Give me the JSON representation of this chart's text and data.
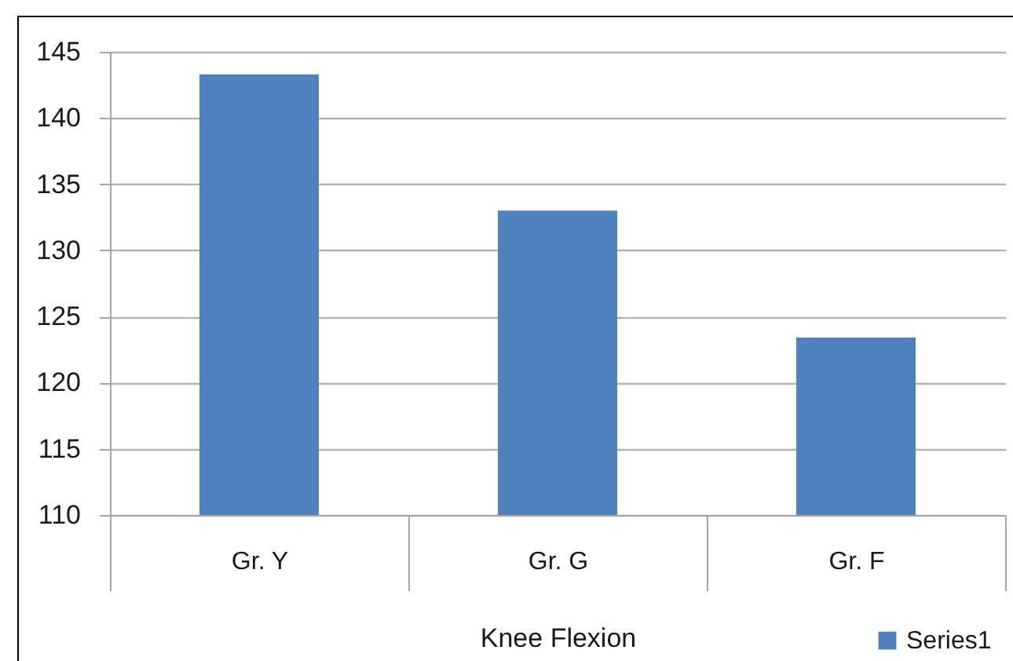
{
  "chart_data": {
    "type": "bar",
    "xlabel": "Knee Flexion",
    "categories": [
      "Gr. Y",
      "Gr. G",
      "Gr. F"
    ],
    "series": [
      {
        "name": "Series1",
        "color": "#4f81bd",
        "values": [
          143.3,
          133.0,
          123.4
        ]
      }
    ],
    "ylim": [
      110,
      145
    ],
    "yticks": [
      110,
      115,
      120,
      125,
      130,
      135,
      140,
      145
    ],
    "grid": "y",
    "legend": "bottom right"
  }
}
